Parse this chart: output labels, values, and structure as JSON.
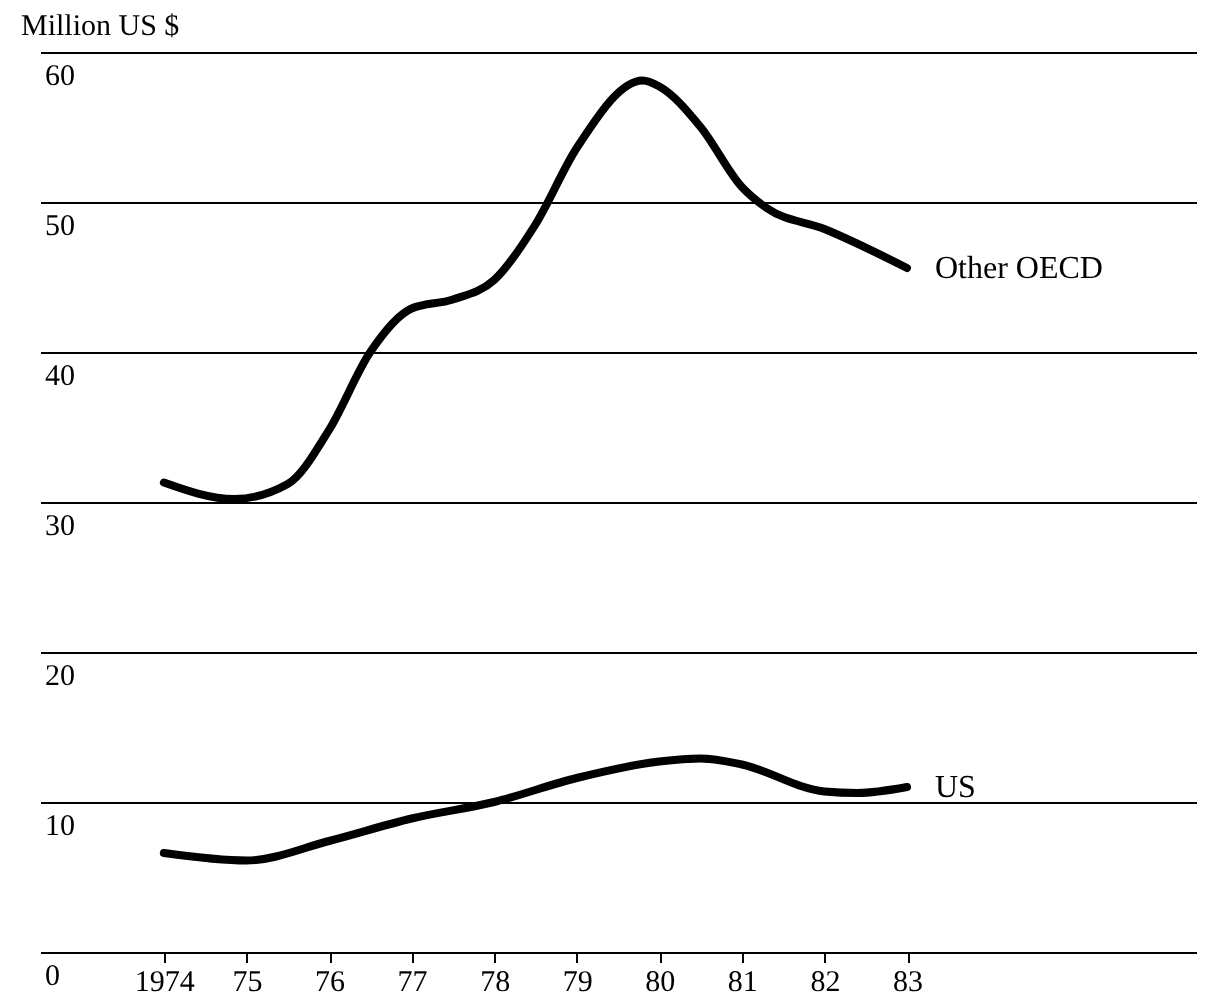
{
  "chart_data": {
    "type": "line",
    "ylabel": "Million US $",
    "xlim": [
      1972.5,
      1986.5
    ],
    "xticks": [
      {
        "value": 1974,
        "label": "1974"
      },
      {
        "value": 1975,
        "label": "75"
      },
      {
        "value": 1976,
        "label": "76"
      },
      {
        "value": 1977,
        "label": "77"
      },
      {
        "value": 1978,
        "label": "78"
      },
      {
        "value": 1979,
        "label": "79"
      },
      {
        "value": 1980,
        "label": "80"
      },
      {
        "value": 1981,
        "label": "81"
      },
      {
        "value": 1982,
        "label": "82"
      },
      {
        "value": 1983,
        "label": "83"
      }
    ],
    "ylim": [
      0,
      60
    ],
    "yticks": [
      0,
      10,
      20,
      30,
      40,
      50,
      60
    ],
    "grid": "y",
    "marker": "none",
    "line_style": "solid",
    "series": [
      {
        "name": "Other OECD",
        "color": "#000000",
        "x": [
          1974,
          1974.85,
          1975.5,
          1976,
          1976.5,
          1977,
          1977.5,
          1978,
          1978.5,
          1979,
          1979.8,
          1980,
          1980.5,
          1981,
          1981.3,
          1982,
          1983
        ],
        "values": [
          31.3,
          30.2,
          31.2,
          34.8,
          40.0,
          42.9,
          43.5,
          44.8,
          48.5,
          53.6,
          58.1,
          57.7,
          55.0,
          51.0,
          49.6,
          48.2,
          45.6
        ]
      },
      {
        "name": "US",
        "color": "#000000",
        "x": [
          1974,
          1975,
          1976,
          1977,
          1978,
          1979,
          1980,
          1980.5,
          1981,
          1982,
          1982.4,
          1983
        ],
        "values": [
          6.6,
          6.1,
          7.4,
          8.9,
          10.0,
          11.6,
          12.7,
          12.9,
          12.5,
          10.7,
          10.6,
          11.0
        ]
      }
    ]
  }
}
